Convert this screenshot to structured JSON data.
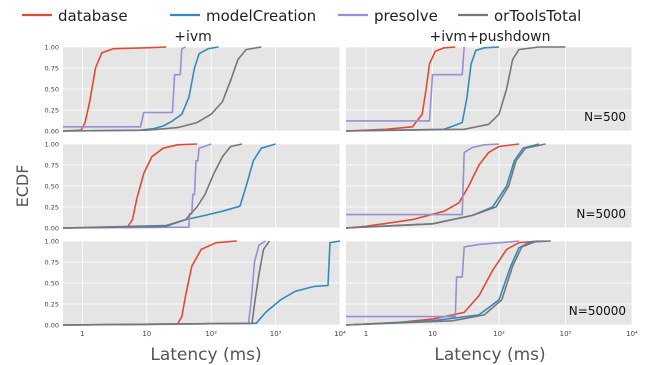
{
  "legend": [
    {
      "label": "database",
      "color": "#E24A33"
    },
    {
      "label": "modelCreation",
      "color": "#348ABD"
    },
    {
      "label": "presolve",
      "color": "#988ED5"
    },
    {
      "label": "orToolsTotal",
      "color": "#777777"
    }
  ],
  "colors": {
    "panel_bg": "#E5E5E5",
    "grid": "#FFFFFF",
    "text": "#444444"
  },
  "ylabel": "ECDF",
  "xlabel": "Latency (ms)",
  "ytick_labels": [
    "0.00",
    "0.25",
    "0.50",
    "0.75",
    "1.00"
  ],
  "col_titles": [
    "+ivm",
    "+ivm+pushdown"
  ],
  "row_labels": [
    "",
    "N=500",
    "N=5000",
    "N=50000"
  ],
  "xtick_labels": [
    "1",
    "10",
    "10²",
    "10³",
    "10⁴"
  ],
  "chart_data": {
    "type": "ecdf-grid",
    "xscale": "log",
    "xlim": [
      0.5,
      10000
    ],
    "ylim": [
      0,
      1
    ],
    "series_names": [
      "database",
      "modelCreation",
      "presolve",
      "orToolsTotal"
    ],
    "panels": [
      {
        "row": 0,
        "col": 0,
        "series": [
          [
            [
              0.5,
              0.0
            ],
            [
              0.95,
              0.01
            ],
            [
              1.1,
              0.1
            ],
            [
              1.3,
              0.35
            ],
            [
              1.6,
              0.75
            ],
            [
              2.0,
              0.93
            ],
            [
              3.0,
              0.98
            ],
            [
              10,
              0.99
            ],
            [
              20,
              1.0
            ]
          ],
          [
            [
              0.5,
              0.0
            ],
            [
              8,
              0.01
            ],
            [
              13,
              0.03
            ],
            [
              18,
              0.06
            ],
            [
              25,
              0.12
            ],
            [
              35,
              0.2
            ],
            [
              45,
              0.4
            ],
            [
              55,
              0.75
            ],
            [
              65,
              0.92
            ],
            [
              90,
              0.98
            ],
            [
              130,
              1.0
            ]
          ],
          [
            [
              0.5,
              0.05
            ],
            [
              8,
              0.05
            ],
            [
              9,
              0.22
            ],
            [
              25,
              0.22
            ],
            [
              27,
              0.67
            ],
            [
              33,
              0.67
            ],
            [
              35,
              0.98
            ],
            [
              40,
              1.0
            ]
          ],
          [
            [
              0.5,
              0.0
            ],
            [
              10,
              0.01
            ],
            [
              30,
              0.04
            ],
            [
              60,
              0.1
            ],
            [
              100,
              0.2
            ],
            [
              150,
              0.35
            ],
            [
              200,
              0.6
            ],
            [
              260,
              0.85
            ],
            [
              350,
              0.97
            ],
            [
              600,
              1.0
            ]
          ]
        ]
      },
      {
        "row": 0,
        "col": 1,
        "series": [
          [
            [
              0.5,
              0.0
            ],
            [
              2,
              0.02
            ],
            [
              5,
              0.05
            ],
            [
              7,
              0.2
            ],
            [
              8,
              0.5
            ],
            [
              9,
              0.8
            ],
            [
              11,
              0.95
            ],
            [
              15,
              0.99
            ],
            [
              22,
              1.0
            ]
          ],
          [
            [
              0.5,
              0.0
            ],
            [
              15,
              0.02
            ],
            [
              28,
              0.1
            ],
            [
              33,
              0.4
            ],
            [
              38,
              0.8
            ],
            [
              45,
              0.96
            ],
            [
              60,
              0.99
            ],
            [
              100,
              1.0
            ]
          ],
          [
            [
              0.5,
              0.12
            ],
            [
              9,
              0.12
            ],
            [
              10,
              0.67
            ],
            [
              28,
              0.67
            ],
            [
              30,
              1.0
            ]
          ],
          [
            [
              0.5,
              0.0
            ],
            [
              30,
              0.02
            ],
            [
              70,
              0.08
            ],
            [
              100,
              0.2
            ],
            [
              130,
              0.5
            ],
            [
              160,
              0.85
            ],
            [
              200,
              0.97
            ],
            [
              400,
              1.0
            ],
            [
              1000,
              1.0
            ]
          ]
        ]
      },
      {
        "row": 1,
        "col": 0,
        "series": [
          [
            [
              0.5,
              0.0
            ],
            [
              5,
              0.01
            ],
            [
              6,
              0.1
            ],
            [
              7,
              0.35
            ],
            [
              9,
              0.65
            ],
            [
              12,
              0.85
            ],
            [
              18,
              0.95
            ],
            [
              30,
              0.99
            ],
            [
              60,
              1.0
            ]
          ],
          [
            [
              0.5,
              0.0
            ],
            [
              20,
              0.03
            ],
            [
              40,
              0.1
            ],
            [
              80,
              0.15
            ],
            [
              150,
              0.2
            ],
            [
              280,
              0.26
            ],
            [
              350,
              0.5
            ],
            [
              450,
              0.8
            ],
            [
              600,
              0.95
            ],
            [
              1000,
              1.0
            ]
          ],
          [
            [
              0.5,
              0.0
            ],
            [
              45,
              0.01
            ],
            [
              46,
              0.17
            ],
            [
              50,
              0.17
            ],
            [
              52,
              0.4
            ],
            [
              55,
              0.4
            ],
            [
              58,
              0.8
            ],
            [
              62,
              0.8
            ],
            [
              65,
              0.95
            ],
            [
              100,
              1.0
            ]
          ],
          [
            [
              0.5,
              0.0
            ],
            [
              20,
              0.02
            ],
            [
              40,
              0.1
            ],
            [
              60,
              0.25
            ],
            [
              80,
              0.4
            ],
            [
              110,
              0.65
            ],
            [
              150,
              0.85
            ],
            [
              200,
              0.97
            ],
            [
              300,
              1.0
            ]
          ]
        ]
      },
      {
        "row": 1,
        "col": 1,
        "series": [
          [
            [
              0.5,
              0.0
            ],
            [
              1,
              0.02
            ],
            [
              5,
              0.1
            ],
            [
              15,
              0.2
            ],
            [
              25,
              0.3
            ],
            [
              35,
              0.5
            ],
            [
              50,
              0.75
            ],
            [
              70,
              0.9
            ],
            [
              100,
              0.97
            ],
            [
              200,
              1.0
            ]
          ],
          [
            [
              0.5,
              0.0
            ],
            [
              10,
              0.05
            ],
            [
              40,
              0.15
            ],
            [
              80,
              0.25
            ],
            [
              130,
              0.5
            ],
            [
              170,
              0.8
            ],
            [
              230,
              0.95
            ],
            [
              400,
              1.0
            ]
          ],
          [
            [
              0.5,
              0.16
            ],
            [
              28,
              0.16
            ],
            [
              30,
              0.9
            ],
            [
              40,
              0.96
            ],
            [
              60,
              0.99
            ],
            [
              100,
              1.0
            ]
          ],
          [
            [
              0.5,
              0.0
            ],
            [
              10,
              0.05
            ],
            [
              40,
              0.15
            ],
            [
              90,
              0.25
            ],
            [
              140,
              0.5
            ],
            [
              180,
              0.8
            ],
            [
              250,
              0.95
            ],
            [
              500,
              1.0
            ]
          ]
        ]
      },
      {
        "row": 2,
        "col": 0,
        "series": [
          [
            [
              0.5,
              0.0
            ],
            [
              30,
              0.01
            ],
            [
              35,
              0.1
            ],
            [
              40,
              0.35
            ],
            [
              50,
              0.7
            ],
            [
              70,
              0.9
            ],
            [
              120,
              0.98
            ],
            [
              250,
              1.0
            ]
          ],
          [
            [
              0.5,
              0.0
            ],
            [
              500,
              0.02
            ],
            [
              700,
              0.15
            ],
            [
              1200,
              0.3
            ],
            [
              2000,
              0.4
            ],
            [
              4000,
              0.46
            ],
            [
              6500,
              0.47
            ],
            [
              7000,
              0.98
            ],
            [
              10000,
              1.0
            ]
          ],
          [
            [
              0.5,
              0.0
            ],
            [
              380,
              0.02
            ],
            [
              420,
              0.3
            ],
            [
              470,
              0.75
            ],
            [
              550,
              0.95
            ],
            [
              700,
              1.0
            ]
          ],
          [
            [
              0.5,
              0.0
            ],
            [
              430,
              0.02
            ],
            [
              480,
              0.3
            ],
            [
              550,
              0.6
            ],
            [
              650,
              0.9
            ],
            [
              800,
              1.0
            ]
          ]
        ]
      },
      {
        "row": 2,
        "col": 1,
        "series": [
          [
            [
              0.5,
              0.0
            ],
            [
              3,
              0.03
            ],
            [
              10,
              0.07
            ],
            [
              30,
              0.15
            ],
            [
              50,
              0.35
            ],
            [
              80,
              0.65
            ],
            [
              130,
              0.9
            ],
            [
              200,
              0.98
            ],
            [
              400,
              1.0
            ]
          ],
          [
            [
              0.5,
              0.0
            ],
            [
              10,
              0.05
            ],
            [
              50,
              0.12
            ],
            [
              100,
              0.3
            ],
            [
              150,
              0.7
            ],
            [
              200,
              0.92
            ],
            [
              300,
              0.99
            ],
            [
              500,
              1.0
            ]
          ],
          [
            [
              0.5,
              0.1
            ],
            [
              22,
              0.1
            ],
            [
              23,
              0.57
            ],
            [
              28,
              0.57
            ],
            [
              30,
              0.93
            ],
            [
              50,
              0.96
            ],
            [
              150,
              0.99
            ],
            [
              200,
              1.0
            ]
          ],
          [
            [
              0.5,
              0.0
            ],
            [
              20,
              0.05
            ],
            [
              60,
              0.12
            ],
            [
              110,
              0.3
            ],
            [
              160,
              0.7
            ],
            [
              220,
              0.93
            ],
            [
              350,
              0.99
            ],
            [
              600,
              1.0
            ]
          ]
        ]
      }
    ]
  }
}
